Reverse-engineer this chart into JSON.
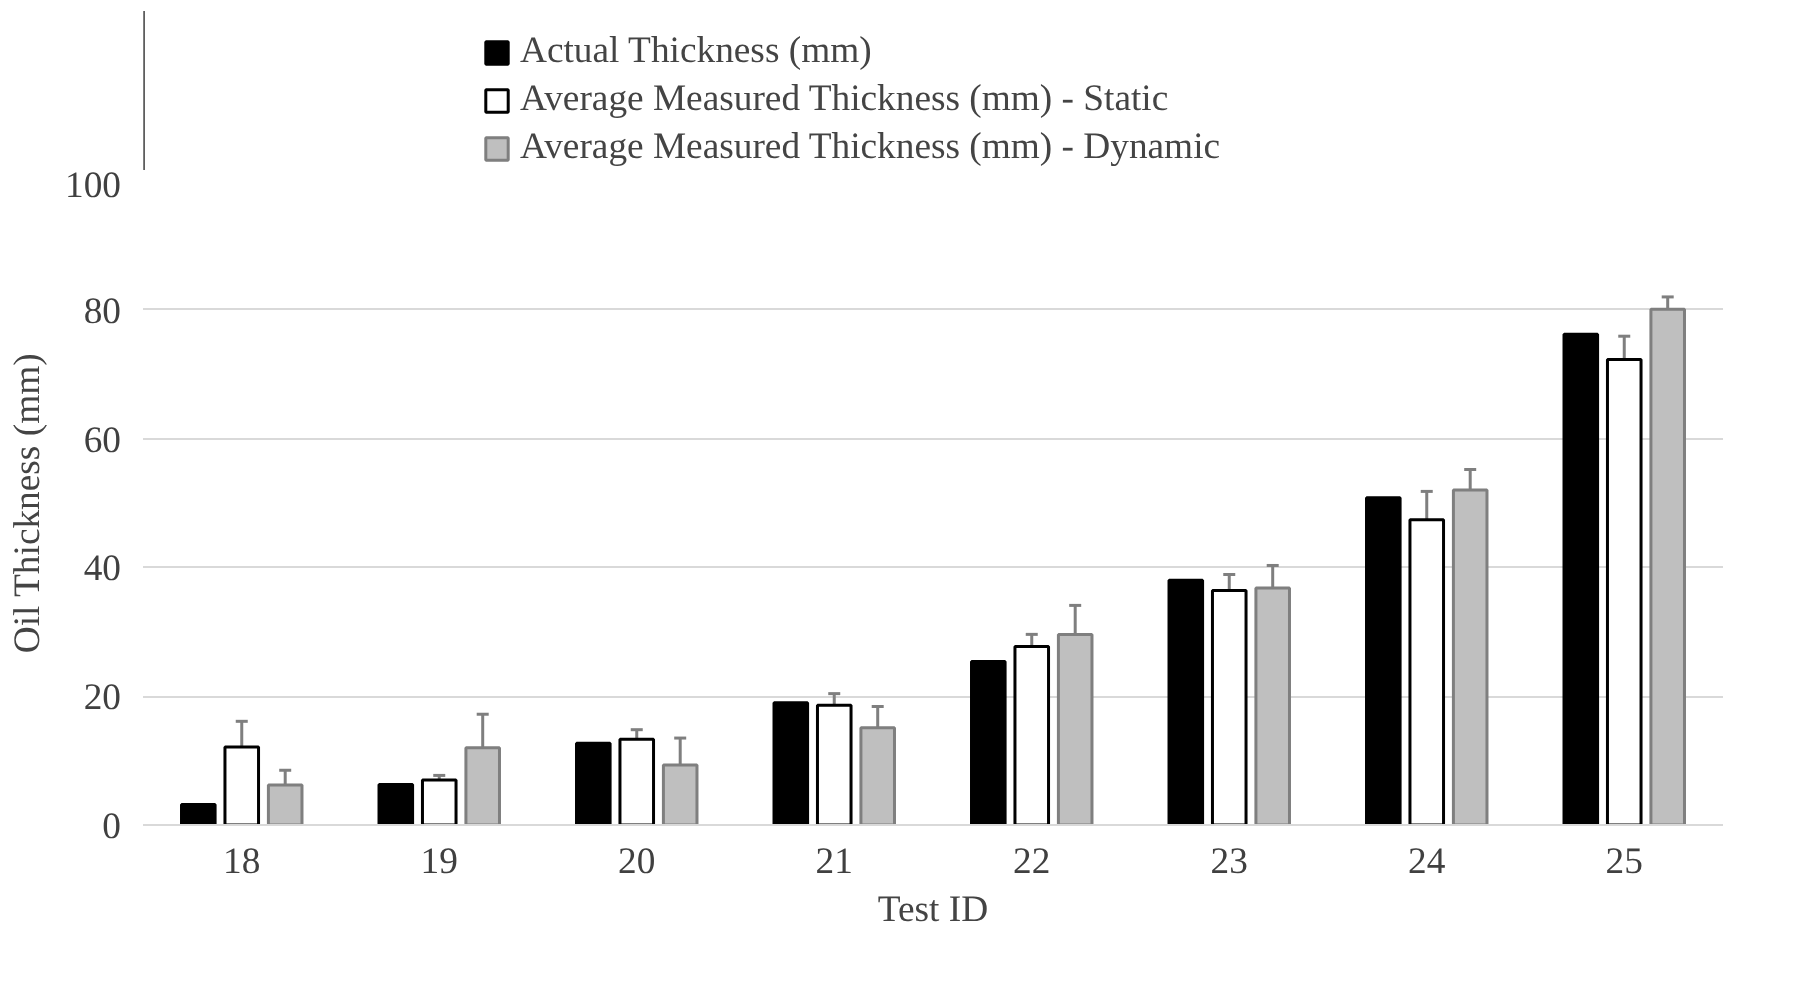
{
  "chart_data": {
    "type": "bar",
    "xlabel": "Test ID",
    "ylabel": "Oil Thickness (mm)",
    "categories": [
      "18",
      "19",
      "20",
      "21",
      "22",
      "23",
      "24",
      "25"
    ],
    "series": [
      {
        "name": "Actual Thickness (mm)",
        "color": "#000000",
        "values": [
          3.2,
          6.3,
          12.7,
          19,
          25.4,
          38,
          50.8,
          76.2
        ]
      },
      {
        "name": "Average Measured Thickness (mm) - Static",
        "color": "#ffffff",
        "values": [
          12.1,
          7,
          13.3,
          18.6,
          27.7,
          36.4,
          47.4,
          72.3
        ],
        "errors": [
          4,
          0.7,
          1.5,
          1.8,
          1.9,
          2.5,
          4.4,
          3.6
        ]
      },
      {
        "name": "Average Measured Thickness (mm) - Dynamic",
        "color": "#bfbfbf",
        "values": [
          6.2,
          12,
          9.3,
          15.1,
          29.6,
          36.8,
          52,
          80.1
        ],
        "errors": [
          2.3,
          5.2,
          4.2,
          3.3,
          4.5,
          3.5,
          3.2,
          1.9
        ]
      }
    ],
    "ylim": [
      0,
      100
    ],
    "yticks": [
      0,
      20,
      40,
      60,
      80,
      100
    ],
    "grid": "y",
    "legend": "top"
  }
}
